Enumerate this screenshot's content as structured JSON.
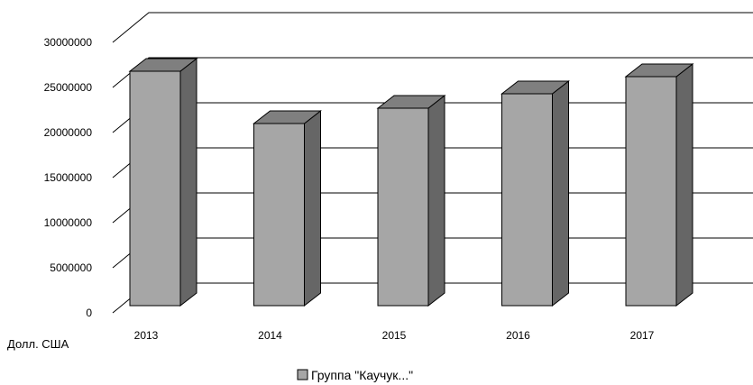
{
  "chart_data": {
    "type": "bar",
    "title": "",
    "xlabel": "",
    "ylabel": "Долл. США",
    "categories": [
      "2013",
      "2014",
      "2015",
      "2016",
      "2017"
    ],
    "series": [
      {
        "name": "Группа \"Каучук...\"",
        "values": [
          26800000,
          21000000,
          22700000,
          24300000,
          26200000
        ]
      }
    ],
    "ylim": [
      0,
      30000000
    ],
    "yticks": [
      0,
      5000000,
      10000000,
      15000000,
      20000000,
      25000000,
      30000000
    ],
    "ytick_labels": [
      "0",
      "5000000",
      "10000000",
      "15000000",
      "20000000",
      "25000000",
      "30000000"
    ],
    "grid": true,
    "style": "3d-column",
    "legend": "bottom",
    "colors": {
      "bar_front": "#a6a6a6",
      "bar_top": "#7f7f7f",
      "bar_side": "#666666",
      "grid": "#000000"
    }
  }
}
